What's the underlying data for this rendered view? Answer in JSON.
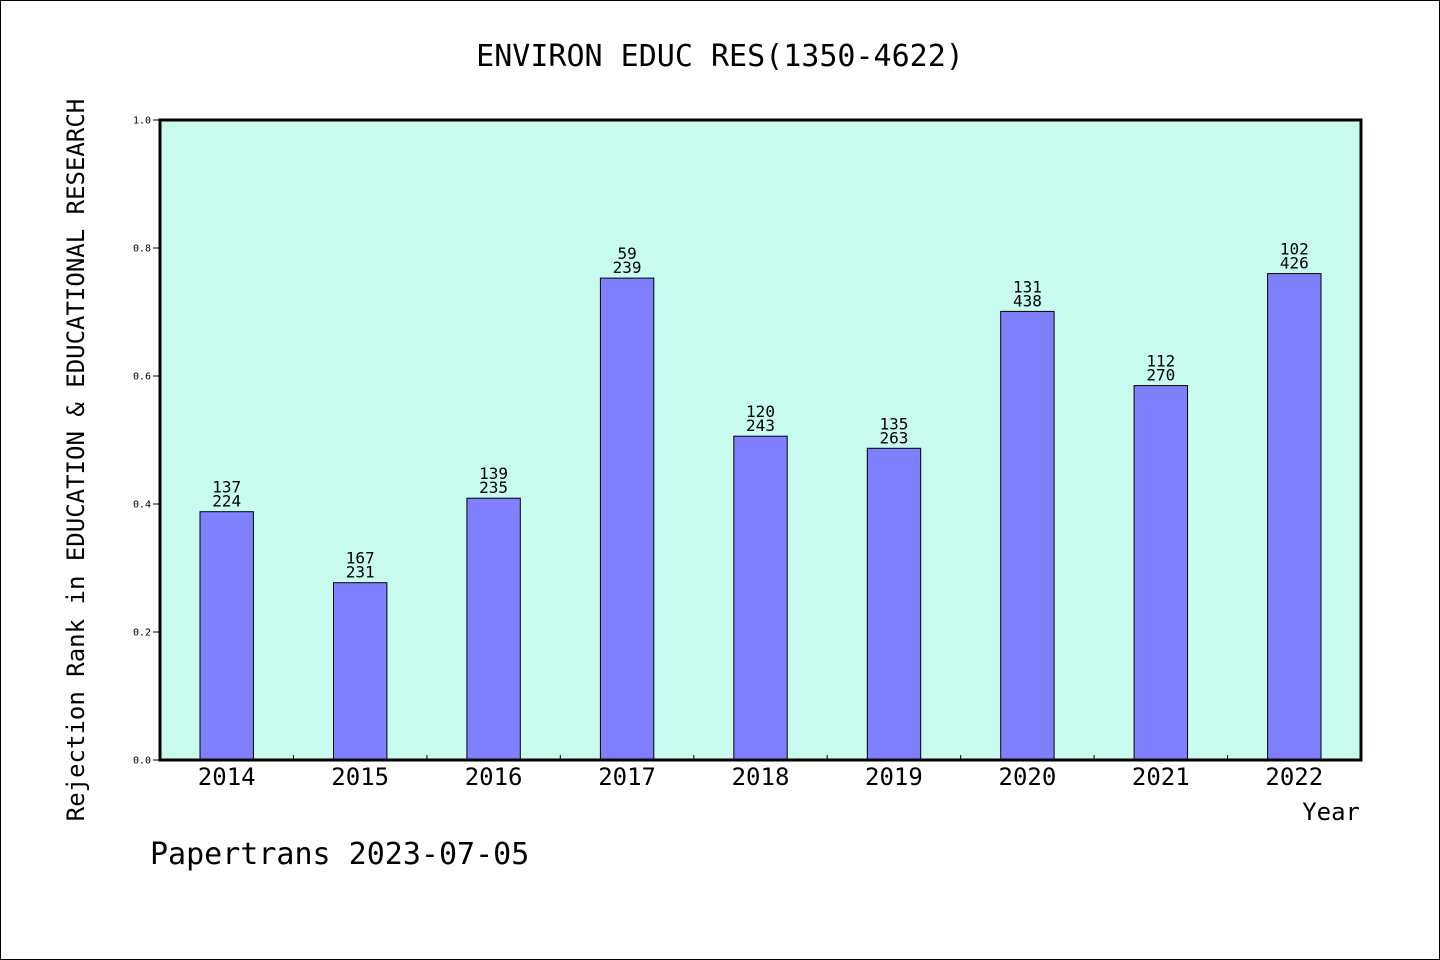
{
  "chart_data": {
    "type": "bar",
    "title": "ENVIRON EDUC RES(1350-4622)",
    "xlabel": "Year",
    "ylabel": "Rejection Rank in EDUCATION & EDUCATIONAL RESEARCH",
    "ylim": [
      0.0,
      1.0
    ],
    "yticks": [
      "0.0",
      "0.2",
      "0.4",
      "0.6",
      "0.8",
      "1.0"
    ],
    "categories": [
      "2014",
      "2015",
      "2016",
      "2017",
      "2018",
      "2019",
      "2020",
      "2021",
      "2022"
    ],
    "values": [
      0.388,
      0.277,
      0.409,
      0.753,
      0.506,
      0.487,
      0.701,
      0.585,
      0.76
    ],
    "bar_labels": [
      [
        "137",
        "224"
      ],
      [
        "167",
        "231"
      ],
      [
        "139",
        "235"
      ],
      [
        "59",
        "239"
      ],
      [
        "120",
        "243"
      ],
      [
        "135",
        "263"
      ],
      [
        "131",
        "438"
      ],
      [
        "112",
        "270"
      ],
      [
        "102",
        "426"
      ]
    ],
    "grid": false,
    "colors": {
      "plot_background": "#c8fcef",
      "bar_fill": "#8080ff",
      "bar_stroke": "#000000"
    }
  },
  "footer": {
    "text": "Papertrans 2023-07-05"
  }
}
